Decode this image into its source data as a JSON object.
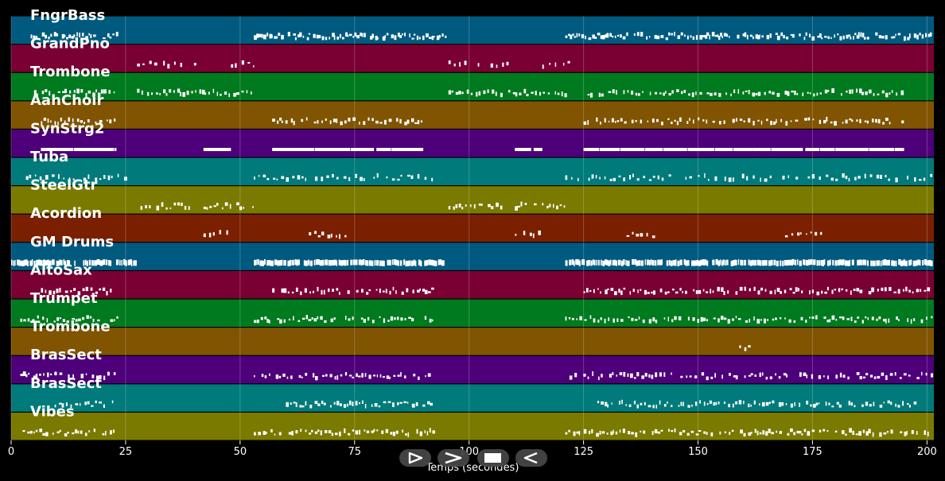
{
  "tracks": [
    {
      "name": "FngrBass",
      "color": "#005a80",
      "density": "high",
      "segments": [
        [
          3.5,
          20
        ],
        [
          21,
          23
        ],
        [
          53,
          95
        ],
        [
          121,
          163
        ],
        [
          163,
          201
        ]
      ]
    },
    {
      "name": "GrandPno",
      "color": "#7a0033",
      "density": "low",
      "segments": [
        [
          27.5,
          41
        ],
        [
          48,
          53
        ],
        [
          95.5,
          109
        ],
        [
          116,
          122
        ]
      ]
    },
    {
      "name": "Trombone",
      "color": "#007a1e",
      "density": "med",
      "segments": [
        [
          5,
          23
        ],
        [
          27.5,
          53
        ],
        [
          95.5,
          121
        ],
        [
          125,
          195
        ]
      ]
    },
    {
      "name": "AahChoir",
      "color": "#805400",
      "density": "med",
      "segments": [
        [
          6.5,
          23
        ],
        [
          57,
          90
        ],
        [
          125,
          195
        ]
      ]
    },
    {
      "name": "SynStrg2",
      "color": "#4d007a",
      "density": "bar",
      "segments": [
        [
          6.5,
          23
        ],
        [
          42,
          48
        ],
        [
          57,
          90
        ],
        [
          110,
          116
        ],
        [
          125,
          162
        ],
        [
          162,
          195
        ]
      ]
    },
    {
      "name": "Tuba",
      "color": "#007a7a",
      "density": "low",
      "segments": [
        [
          2,
          26
        ],
        [
          53,
          92
        ],
        [
          121,
          201
        ]
      ]
    },
    {
      "name": "SteelGtr",
      "color": "#7a7a00",
      "density": "med",
      "segments": [
        [
          27.5,
          39
        ],
        [
          42,
          53
        ],
        [
          95.5,
          107
        ],
        [
          110,
          121
        ]
      ]
    },
    {
      "name": "Acordion",
      "color": "#7a2000",
      "density": "low",
      "segments": [
        [
          42,
          47
        ],
        [
          65,
          73
        ],
        [
          110,
          116
        ],
        [
          133,
          141
        ],
        [
          169,
          177
        ]
      ]
    },
    {
      "name": "GM Drums",
      "color": "#005a80",
      "density": "dense",
      "segments": [
        [
          0,
          27
        ],
        [
          53,
          95
        ],
        [
          121,
          201
        ]
      ]
    },
    {
      "name": "AltoSax",
      "color": "#7a0033",
      "density": "med",
      "segments": [
        [
          6.5,
          22
        ],
        [
          57,
          92
        ],
        [
          125,
          201
        ]
      ]
    },
    {
      "name": "Trumpet",
      "color": "#007a1e",
      "density": "med",
      "segments": [
        [
          2,
          23
        ],
        [
          53,
          92
        ],
        [
          121,
          201
        ]
      ]
    },
    {
      "name": "Trombone",
      "color": "#805400",
      "density": "low",
      "segments": [
        [
          159,
          161
        ]
      ]
    },
    {
      "name": "BrasSect",
      "color": "#4d007a",
      "density": "med",
      "segments": [
        [
          2,
          23
        ],
        [
          53,
          92
        ],
        [
          121,
          201
        ]
      ]
    },
    {
      "name": "BrasSect",
      "color": "#007a7a",
      "density": "med",
      "segments": [
        [
          9.5,
          23
        ],
        [
          60,
          92
        ],
        [
          128,
          198
        ]
      ]
    },
    {
      "name": "Vibes",
      "color": "#7a7a00",
      "density": "med",
      "segments": [
        [
          2,
          23
        ],
        [
          53,
          92
        ],
        [
          121,
          201
        ]
      ]
    }
  ],
  "axis": {
    "title": "Temps (secondes)",
    "min": 0,
    "max": 201.5,
    "ticks": [
      0,
      25,
      50,
      75,
      100,
      125,
      150,
      175,
      200
    ]
  },
  "controls": {
    "play": "play-icon",
    "forward": "fast-forward-icon",
    "stop": "stop-icon",
    "back": "rewind-icon"
  }
}
